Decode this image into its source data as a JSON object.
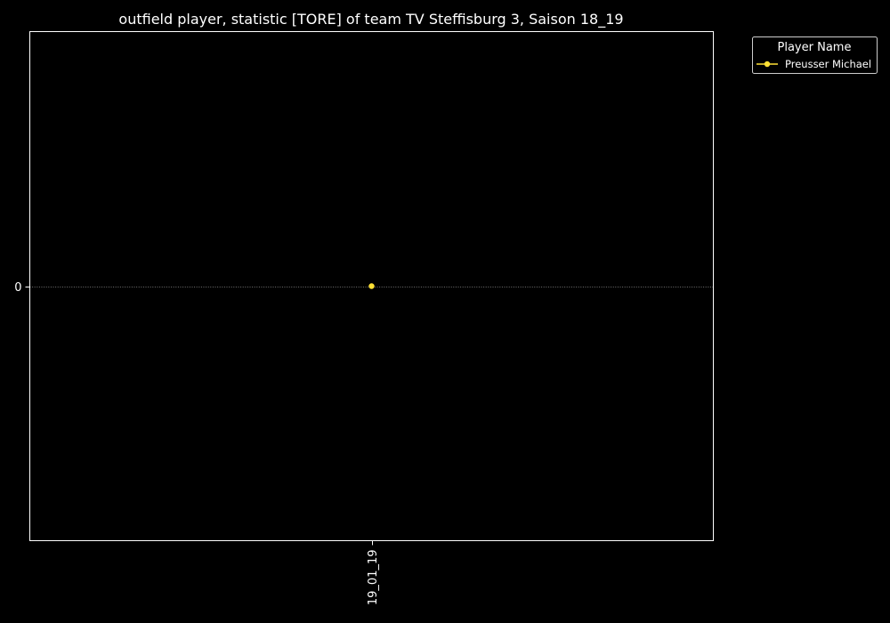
{
  "chart_data": {
    "type": "line",
    "title": "outfield player, statistic [TORE] of team TV Steffisburg 3, Saison 18_19",
    "xlabel": "",
    "ylabel": "",
    "categories": [
      "19_01_19"
    ],
    "series": [
      {
        "name": "Preusser Michael",
        "values": [
          0
        ],
        "color": "#ffe135"
      }
    ],
    "yticks": [
      0
    ],
    "ylim": [
      -0.055,
      0.055
    ],
    "grid": "horizontal dotted",
    "legend": {
      "title": "Player Name",
      "placement": "outside-top-right"
    },
    "colors": {
      "background": "#000000",
      "axes": "#ffffff",
      "text": "#ffffff",
      "grid": "#9a9a9a"
    }
  }
}
